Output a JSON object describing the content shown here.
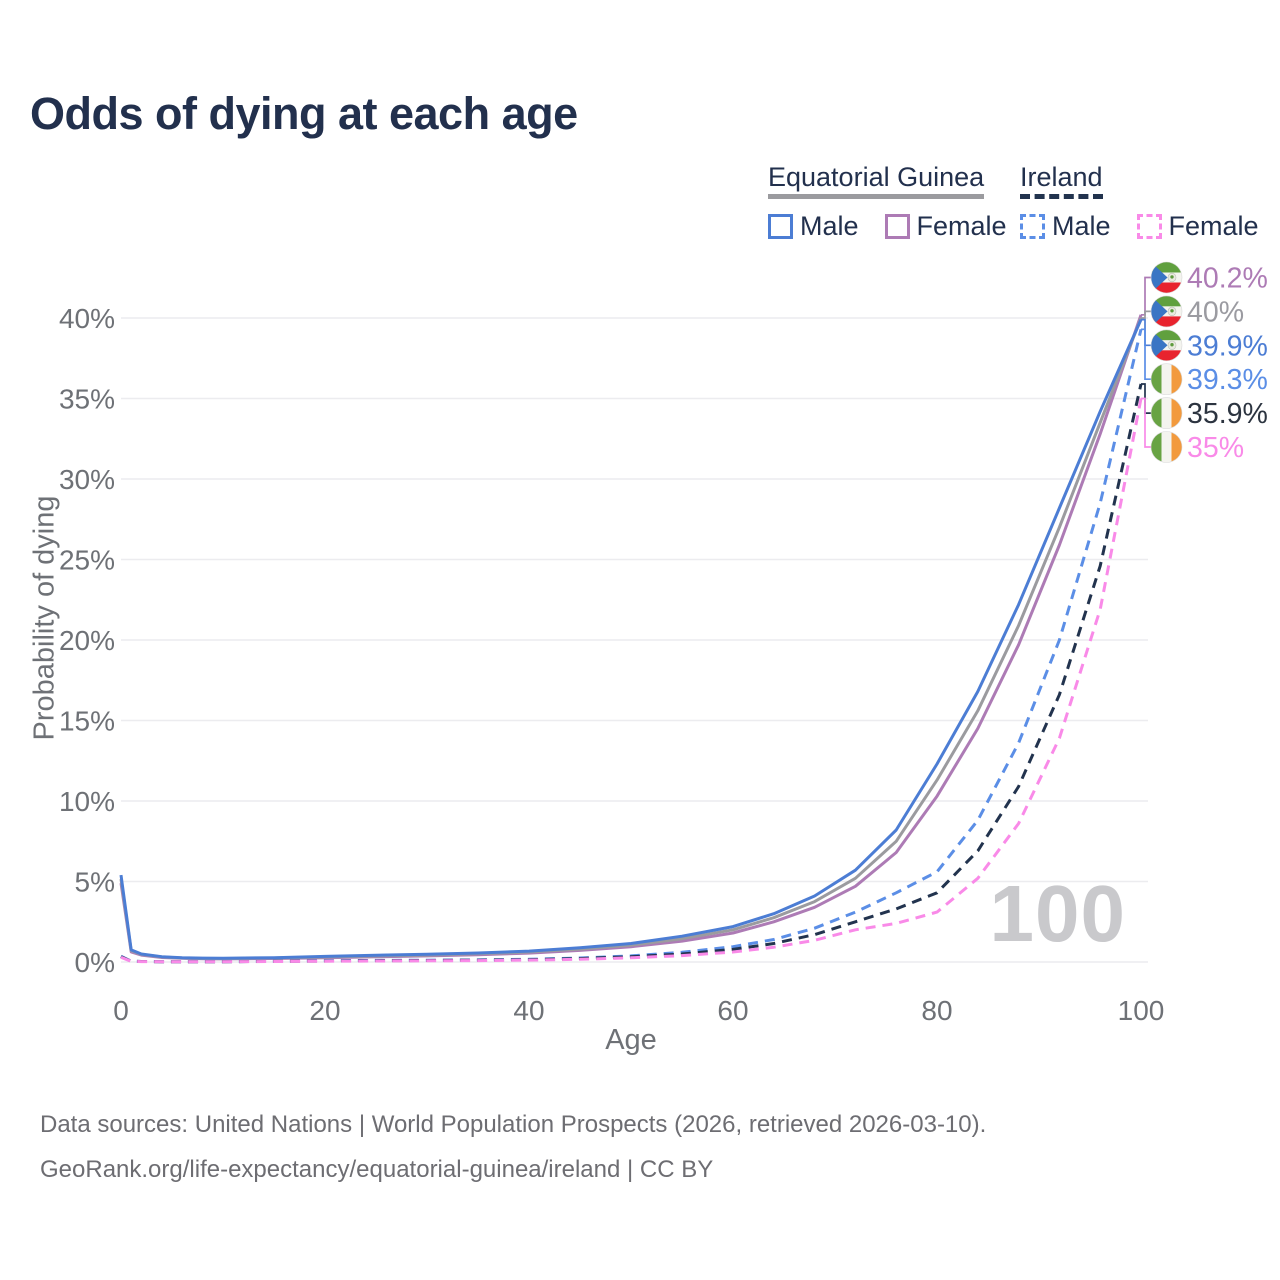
{
  "title": "Odds of dying at each age",
  "legend": {
    "groups": [
      {
        "label": "Equatorial Guinea",
        "underline": {
          "style": "solid",
          "color": "#9b9b9f"
        },
        "items": [
          {
            "label": "Male",
            "color": "#4c7dd4",
            "dashed": false
          },
          {
            "label": "Female",
            "color": "#ad7bb5",
            "dashed": false
          }
        ]
      },
      {
        "label": "Ireland",
        "underline": {
          "style": "dashed",
          "color": "#22334e"
        },
        "items": [
          {
            "label": "Male",
            "color": "#5b8ee6",
            "dashed": true
          },
          {
            "label": "Female",
            "color": "#f98ae8",
            "dashed": true
          }
        ]
      }
    ]
  },
  "chart_data": {
    "type": "line",
    "title": "Odds of dying at each age",
    "xlabel": "Age",
    "ylabel": "Probability of dying",
    "xlim": [
      0,
      100
    ],
    "ylim": [
      0,
      42
    ],
    "grid": true,
    "x_ticks": [
      {
        "value": 0,
        "label": "0"
      },
      {
        "value": 20,
        "label": "20"
      },
      {
        "value": 40,
        "label": "40"
      },
      {
        "value": 60,
        "label": "60"
      },
      {
        "value": 80,
        "label": "80"
      },
      {
        "value": 100,
        "label": "100"
      }
    ],
    "y_ticks": [
      {
        "value": 0,
        "label": "0%"
      },
      {
        "value": 5,
        "label": "5%"
      },
      {
        "value": 10,
        "label": "10%"
      },
      {
        "value": 15,
        "label": "15%"
      },
      {
        "value": 20,
        "label": "20%"
      },
      {
        "value": 25,
        "label": "25%"
      },
      {
        "value": 30,
        "label": "30%"
      },
      {
        "value": 35,
        "label": "35%"
      },
      {
        "value": 40,
        "label": "40%"
      }
    ],
    "series": [
      {
        "id": "gq-female",
        "country": "Equatorial Guinea",
        "country_code": "gq",
        "sex": "Female",
        "color": "#ad7bb5",
        "dashed": false,
        "points": [
          [
            0,
            4.9
          ],
          [
            1,
            0.63
          ],
          [
            2,
            0.43
          ],
          [
            4,
            0.28
          ],
          [
            6,
            0.23
          ],
          [
            8,
            0.2
          ],
          [
            10,
            0.19
          ],
          [
            15,
            0.22
          ],
          [
            20,
            0.27
          ],
          [
            25,
            0.32
          ],
          [
            30,
            0.38
          ],
          [
            35,
            0.45
          ],
          [
            40,
            0.55
          ],
          [
            45,
            0.72
          ],
          [
            50,
            0.95
          ],
          [
            55,
            1.3
          ],
          [
            60,
            1.8
          ],
          [
            64,
            2.5
          ],
          [
            68,
            3.4
          ],
          [
            72,
            4.7
          ],
          [
            76,
            6.8
          ],
          [
            80,
            10.3
          ],
          [
            84,
            14.5
          ],
          [
            88,
            19.7
          ],
          [
            92,
            25.9
          ],
          [
            96,
            32.8
          ],
          [
            100,
            40.2
          ]
        ]
      },
      {
        "id": "gq-both",
        "country": "Equatorial Guinea",
        "country_code": "gq",
        "sex": "Both sexes",
        "color": "#9b9b9f",
        "dashed": false,
        "points": [
          [
            0,
            5.15
          ],
          [
            1,
            0.7
          ],
          [
            2,
            0.47
          ],
          [
            4,
            0.31
          ],
          [
            6,
            0.25
          ],
          [
            8,
            0.22
          ],
          [
            10,
            0.21
          ],
          [
            15,
            0.25
          ],
          [
            20,
            0.31
          ],
          [
            25,
            0.37
          ],
          [
            30,
            0.43
          ],
          [
            35,
            0.51
          ],
          [
            40,
            0.62
          ],
          [
            45,
            0.8
          ],
          [
            50,
            1.05
          ],
          [
            55,
            1.45
          ],
          [
            60,
            2.0
          ],
          [
            64,
            2.75
          ],
          [
            68,
            3.75
          ],
          [
            72,
            5.2
          ],
          [
            76,
            7.5
          ],
          [
            80,
            11.3
          ],
          [
            84,
            15.6
          ],
          [
            88,
            20.9
          ],
          [
            92,
            27.0
          ],
          [
            96,
            33.5
          ],
          [
            100,
            40.0
          ]
        ]
      },
      {
        "id": "gq-male",
        "country": "Equatorial Guinea",
        "country_code": "gq",
        "sex": "Male",
        "color": "#4c7dd4",
        "dashed": false,
        "points": [
          [
            0,
            5.4
          ],
          [
            1,
            0.75
          ],
          [
            2,
            0.5
          ],
          [
            4,
            0.33
          ],
          [
            6,
            0.27
          ],
          [
            8,
            0.24
          ],
          [
            10,
            0.23
          ],
          [
            15,
            0.27
          ],
          [
            20,
            0.35
          ],
          [
            25,
            0.42
          ],
          [
            30,
            0.48
          ],
          [
            35,
            0.56
          ],
          [
            40,
            0.68
          ],
          [
            45,
            0.88
          ],
          [
            50,
            1.15
          ],
          [
            55,
            1.6
          ],
          [
            60,
            2.2
          ],
          [
            64,
            3.0
          ],
          [
            68,
            4.1
          ],
          [
            72,
            5.7
          ],
          [
            76,
            8.2
          ],
          [
            80,
            12.3
          ],
          [
            84,
            16.8
          ],
          [
            88,
            22.2
          ],
          [
            92,
            28.2
          ],
          [
            96,
            34.2
          ],
          [
            100,
            39.9
          ]
        ]
      },
      {
        "id": "ie-male",
        "country": "Ireland",
        "country_code": "ie",
        "sex": "Male",
        "color": "#5b8ee6",
        "dashed": true,
        "points": [
          [
            0,
            0.36
          ],
          [
            1,
            0.05
          ],
          [
            2,
            0.03
          ],
          [
            4,
            0.02
          ],
          [
            6,
            0.02
          ],
          [
            8,
            0.02
          ],
          [
            10,
            0.02
          ],
          [
            15,
            0.04
          ],
          [
            20,
            0.08
          ],
          [
            25,
            0.1
          ],
          [
            30,
            0.11
          ],
          [
            35,
            0.13
          ],
          [
            40,
            0.17
          ],
          [
            45,
            0.25
          ],
          [
            50,
            0.38
          ],
          [
            55,
            0.6
          ],
          [
            60,
            0.95
          ],
          [
            64,
            1.4
          ],
          [
            68,
            2.1
          ],
          [
            72,
            3.1
          ],
          [
            76,
            4.3
          ],
          [
            80,
            5.6
          ],
          [
            84,
            8.8
          ],
          [
            88,
            13.6
          ],
          [
            92,
            20.0
          ],
          [
            96,
            28.5
          ],
          [
            100,
            39.3
          ]
        ]
      },
      {
        "id": "ie-both",
        "country": "Ireland",
        "country_code": "ie",
        "sex": "Both sexes",
        "color": "#22334e",
        "dashed": true,
        "points": [
          [
            0,
            0.33
          ],
          [
            1,
            0.045
          ],
          [
            2,
            0.03
          ],
          [
            4,
            0.02
          ],
          [
            6,
            0.02
          ],
          [
            8,
            0.02
          ],
          [
            10,
            0.02
          ],
          [
            15,
            0.035
          ],
          [
            20,
            0.065
          ],
          [
            25,
            0.08
          ],
          [
            30,
            0.095
          ],
          [
            35,
            0.11
          ],
          [
            40,
            0.145
          ],
          [
            45,
            0.21
          ],
          [
            50,
            0.32
          ],
          [
            55,
            0.5
          ],
          [
            60,
            0.78
          ],
          [
            64,
            1.15
          ],
          [
            68,
            1.7
          ],
          [
            72,
            2.5
          ],
          [
            76,
            3.3
          ],
          [
            80,
            4.3
          ],
          [
            84,
            6.9
          ],
          [
            88,
            10.9
          ],
          [
            92,
            16.6
          ],
          [
            96,
            24.6
          ],
          [
            100,
            35.9
          ]
        ]
      },
      {
        "id": "ie-female",
        "country": "Ireland",
        "country_code": "ie",
        "sex": "Female",
        "color": "#f98ae8",
        "dashed": true,
        "points": [
          [
            0,
            0.3
          ],
          [
            1,
            0.04
          ],
          [
            2,
            0.025
          ],
          [
            4,
            0.018
          ],
          [
            6,
            0.015
          ],
          [
            8,
            0.015
          ],
          [
            10,
            0.018
          ],
          [
            15,
            0.03
          ],
          [
            20,
            0.05
          ],
          [
            25,
            0.06
          ],
          [
            30,
            0.075
          ],
          [
            35,
            0.09
          ],
          [
            40,
            0.12
          ],
          [
            45,
            0.17
          ],
          [
            50,
            0.26
          ],
          [
            55,
            0.4
          ],
          [
            60,
            0.62
          ],
          [
            64,
            0.92
          ],
          [
            68,
            1.35
          ],
          [
            72,
            2.0
          ],
          [
            76,
            2.4
          ],
          [
            80,
            3.1
          ],
          [
            84,
            5.2
          ],
          [
            88,
            8.6
          ],
          [
            92,
            13.9
          ],
          [
            96,
            21.9
          ],
          [
            100,
            35.0
          ]
        ]
      }
    ],
    "end_labels": [
      {
        "series": "gq-female",
        "text": "40.2%",
        "color": "#ad7bb5"
      },
      {
        "series": "gq-both",
        "text": "40%",
        "color": "#9b9ba1"
      },
      {
        "series": "gq-male",
        "text": "39.9%",
        "color": "#4c7dd4"
      },
      {
        "series": "ie-male",
        "text": "39.3%",
        "color": "#5b8ee6"
      },
      {
        "series": "ie-both",
        "text": "35.9%",
        "color": "#2c3440"
      },
      {
        "series": "ie-female",
        "text": "35%",
        "color": "#f98ae8"
      }
    ],
    "legend_position": "top-right"
  },
  "age_indicator": "100",
  "footer": {
    "line1": "Data sources: United Nations | World Population Prospects (2026, retrieved 2026-03-10).",
    "line2": "GeoRank.org/life-expectancy/equatorial-guinea/ireland | CC BY"
  },
  "colors": {
    "title_text": "#22304d",
    "axis_text": "#6e7176",
    "gridline": "#ececef",
    "footer_text": "#6d6d72",
    "age_indicator": "#c9c9cc"
  }
}
